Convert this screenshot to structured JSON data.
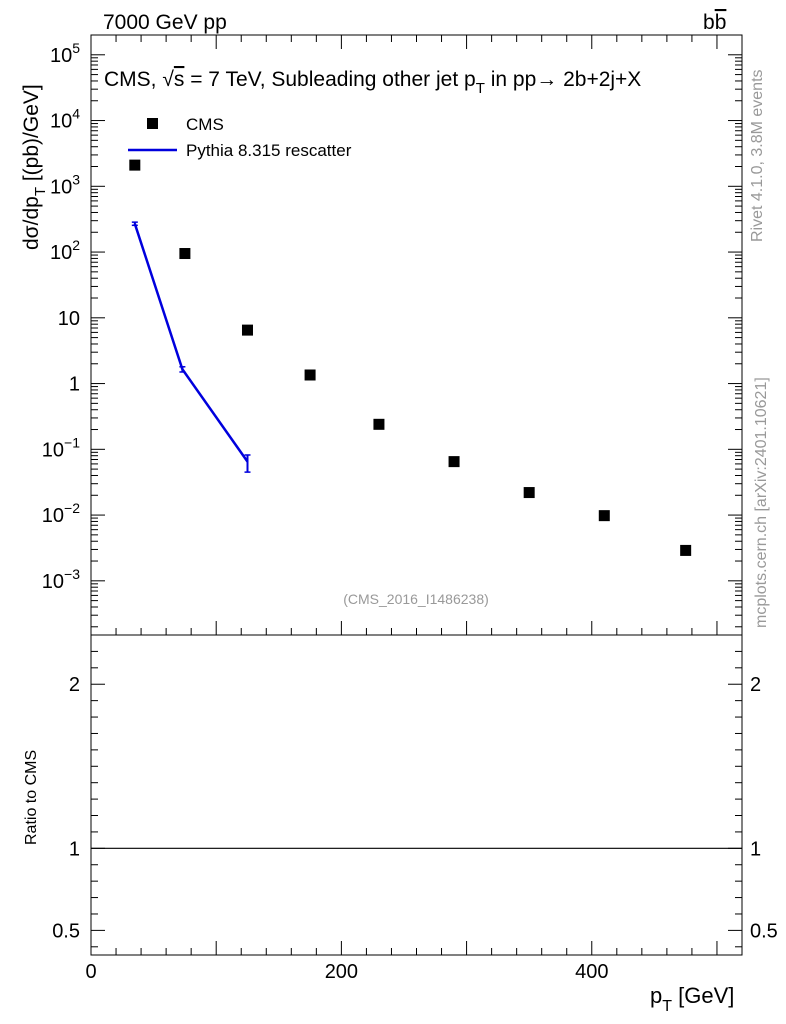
{
  "header": {
    "left": "7000 GeV pp",
    "right": "b",
    "right_bar": "b"
  },
  "side_labels": {
    "rivet": "Rivet 4.1.0,  3.8M events",
    "source": "mcplots.cern.ch [arXiv:2401.10621]"
  },
  "watermark": "(CMS_2016_I1486238)",
  "colors": {
    "cms": "#000000",
    "pythia": "#0000dd",
    "grey": "#999999"
  },
  "chart_data": [
    {
      "type": "scatter",
      "title": "CMS, √s = 7 TeV, Subleading other jet p_T in pp→ 2b+2j+X",
      "title_parts": {
        "pre": "CMS, ",
        "sqrt": "√",
        "s": "s",
        "mid": " = 7 TeV, Subleading other jet p",
        "sub": "T",
        "post": " in pp→  2b+2j+X"
      },
      "ylabel": "dσ/dp_T [(pb)/GeV]",
      "ylabel_parts": {
        "main": "dσ/dp",
        "sub": "T",
        "unit": " [(pb)/GeV]"
      },
      "yscale": "log",
      "ylim": [
        0.00015,
        200000
      ],
      "xlim": [
        0,
        520
      ],
      "yticks": [
        {
          "v": 100000,
          "base": "10",
          "exp": "5"
        },
        {
          "v": 10000,
          "base": "10",
          "exp": "4"
        },
        {
          "v": 1000,
          "base": "10",
          "exp": "3"
        },
        {
          "v": 100,
          "base": "10",
          "exp": "2"
        },
        {
          "v": 10,
          "base": "10",
          "exp": ""
        },
        {
          "v": 1,
          "base": "1",
          "exp": ""
        },
        {
          "v": 0.1,
          "base": "10",
          "exp": "−1"
        },
        {
          "v": 0.01,
          "base": "10",
          "exp": "−2"
        },
        {
          "v": 0.001,
          "base": "10",
          "exp": "−3"
        }
      ],
      "legend": [
        {
          "label": "CMS",
          "marker": "square"
        },
        {
          "label": "Pythia 8.315 rescatter",
          "marker": "line"
        }
      ],
      "legend_position": "top-left",
      "series": [
        {
          "name": "CMS",
          "x": [
            35,
            75,
            125,
            175,
            230,
            290,
            350,
            410,
            475
          ],
          "y": [
            2100,
            95,
            6.5,
            1.35,
            0.24,
            0.065,
            0.022,
            0.0098,
            0.0029
          ]
        },
        {
          "name": "Pythia 8.315 rescatter",
          "x": [
            35,
            73,
            125
          ],
          "y": [
            270,
            1.65,
            0.065
          ],
          "err_low": [
            255,
            1.5,
            0.045
          ],
          "err_high": [
            285,
            1.8,
            0.082
          ]
        }
      ]
    },
    {
      "type": "line",
      "ylabel": "Ratio to CMS",
      "xlabel": "p_T [GeV]",
      "xlabel_parts": {
        "main": "p",
        "sub": "T",
        "unit": " [GeV]"
      },
      "ylim": [
        0.35,
        2.3
      ],
      "xlim": [
        0,
        520
      ],
      "yticks": [
        {
          "v": 0.5,
          "label": "0.5"
        },
        {
          "v": 1,
          "label": "1"
        },
        {
          "v": 2,
          "label": "2"
        }
      ],
      "xticks": [
        {
          "v": 0,
          "label": "0"
        },
        {
          "v": 200,
          "label": "200"
        },
        {
          "v": 400,
          "label": "400"
        }
      ],
      "reference_line": 1
    }
  ]
}
